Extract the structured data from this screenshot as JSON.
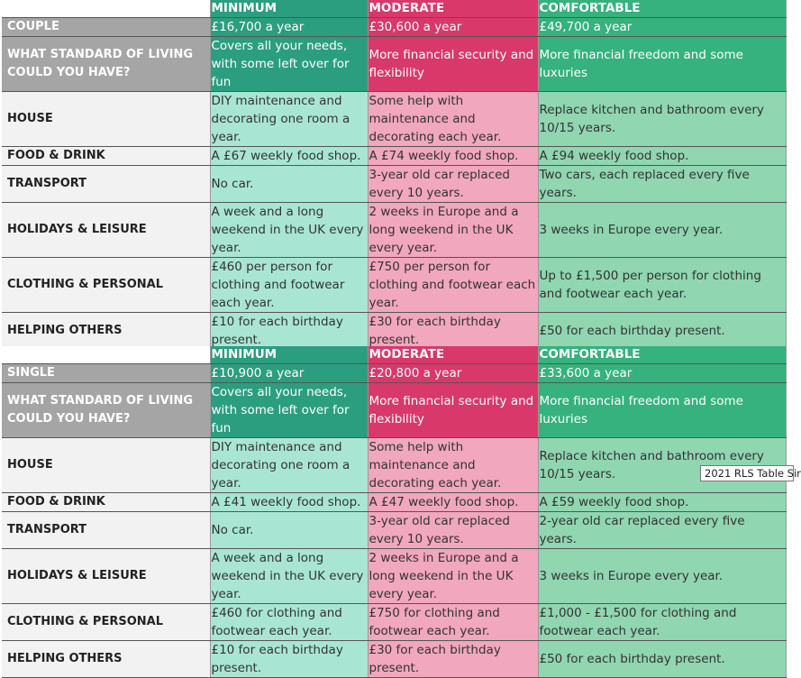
{
  "tables": [
    {
      "header": {
        "minimum": "MINIMUM",
        "moderate": "MODERATE",
        "comfortable": "COMFORTABLE"
      },
      "household": {
        "label": "COUPLE",
        "minimum": "£16,700 a year",
        "moderate": "£30,600 a year",
        "comfortable": "£49,700 a year"
      },
      "standard": {
        "label": "WHAT STANDARD OF LIVING COULD YOU HAVE?",
        "minimum": "Covers all your needs, with some left over for fun",
        "moderate": "More financial security and flexibility",
        "comfortable": "More financial freedom and some luxuries"
      },
      "rows": [
        {
          "label": "HOUSE",
          "minimum": "DIY maintenance and decorating one room a year.",
          "moderate": "Some help with maintenance and decorating each year.",
          "comfortable": "Replace kitchen and bathroom every 10/15 years."
        },
        {
          "label": "FOOD & DRINK",
          "minimum": "A £67 weekly food shop.",
          "moderate": "A £74 weekly food shop.",
          "comfortable": "A £94 weekly food shop."
        },
        {
          "label": "TRANSPORT",
          "minimum": "No car.",
          "moderate": "3-year old car replaced every 10 years.",
          "comfortable": "Two cars, each replaced every five years."
        },
        {
          "label": "HOLIDAYS & LEISURE",
          "minimum": "A week and a long weekend in the UK every year.",
          "moderate": "2 weeks in Europe and a long weekend in the UK every year.",
          "comfortable": "3 weeks in Europe every year."
        },
        {
          "label": "CLOTHING & PERSONAL",
          "minimum": "£460 per person for clothing and footwear each year.",
          "moderate": "£750 per person for clothing and footwear each year.",
          "comfortable": "Up to £1,500 per person for clothing and footwear each year."
        },
        {
          "label": "HELPING OTHERS",
          "minimum": "£10 for each birthday present.",
          "moderate": "£30 for each birthday present.",
          "comfortable": "£50 for each birthday present."
        }
      ]
    },
    {
      "header": {
        "minimum": "MINIMUM",
        "moderate": "MODERATE",
        "comfortable": "COMFORTABLE"
      },
      "household": {
        "label": "SINGLE",
        "minimum": "£10,900 a year",
        "moderate": "£20,800 a year",
        "comfortable": "£33,600 a year"
      },
      "standard": {
        "label": "WHAT STANDARD OF LIVING COULD YOU HAVE?",
        "minimum": "Covers all your needs, with some left over for fun",
        "moderate": "More financial security and flexibility",
        "comfortable": "More financial freedom and some luxuries"
      },
      "rows": [
        {
          "label": "HOUSE",
          "minimum": "DIY maintenance and decorating one room a year.",
          "moderate": "Some help with maintenance and decorating each year.",
          "comfortable": "Replace kitchen and bathroom every 10/15 years."
        },
        {
          "label": "FOOD & DRINK",
          "minimum": "A £41 weekly food shop.",
          "moderate": "A £47 weekly food shop.",
          "comfortable": "A £59 weekly food shop."
        },
        {
          "label": "TRANSPORT",
          "minimum": "No car.",
          "moderate": "3-year old car replaced every 10 years.",
          "comfortable": "2-year old car replaced every five years."
        },
        {
          "label": "HOLIDAYS & LEISURE",
          "minimum": "A week and a long weekend in the UK every year.",
          "moderate": "2 weeks in Europe and a long weekend in the UK every year.",
          "comfortable": "3 weeks in Europe every year."
        },
        {
          "label": "CLOTHING & PERSONAL",
          "minimum": "£460 for clothing and footwear each year.",
          "moderate": "£750 for clothing and footwear each year.",
          "comfortable": "£1,000 - £1,500 for clothing and footwear each year."
        },
        {
          "label": "HELPING OTHERS",
          "minimum": "£10 for each birthday present.",
          "moderate": "£30 for each birthday present.",
          "comfortable": "£50 for each birthday present."
        }
      ]
    }
  ],
  "tooltip": "2021 RLS Table Sir"
}
